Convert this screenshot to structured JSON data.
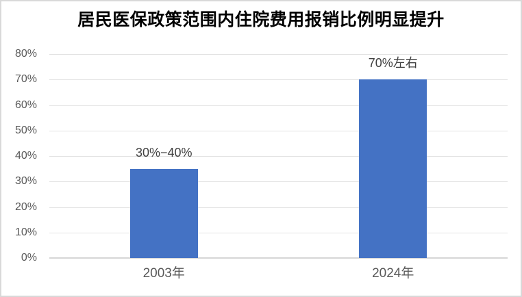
{
  "chart_data": {
    "type": "bar",
    "title": "居民医保政策范围内住院费用报销比例明显提升",
    "categories": [
      "2003年",
      "2024年"
    ],
    "values": [
      35,
      70
    ],
    "data_labels": [
      "30%−40%",
      "70%左右"
    ],
    "xlabel": "",
    "ylabel": "",
    "ylim": [
      0,
      80
    ],
    "y_ticks": [
      0,
      10,
      20,
      30,
      40,
      50,
      60,
      70,
      80
    ],
    "y_tick_suffix": "%",
    "grid": true,
    "legend": false,
    "colors": {
      "bar": "#4472c4",
      "gridline": "#e2e2e2",
      "axis_line": "#d6d6d6",
      "tick_label": "#595959",
      "category_label": "#595959",
      "data_label": "#3f3f3f",
      "title": "#000000",
      "frame_border": "#d9d9d9",
      "background": "#ffffff"
    }
  }
}
